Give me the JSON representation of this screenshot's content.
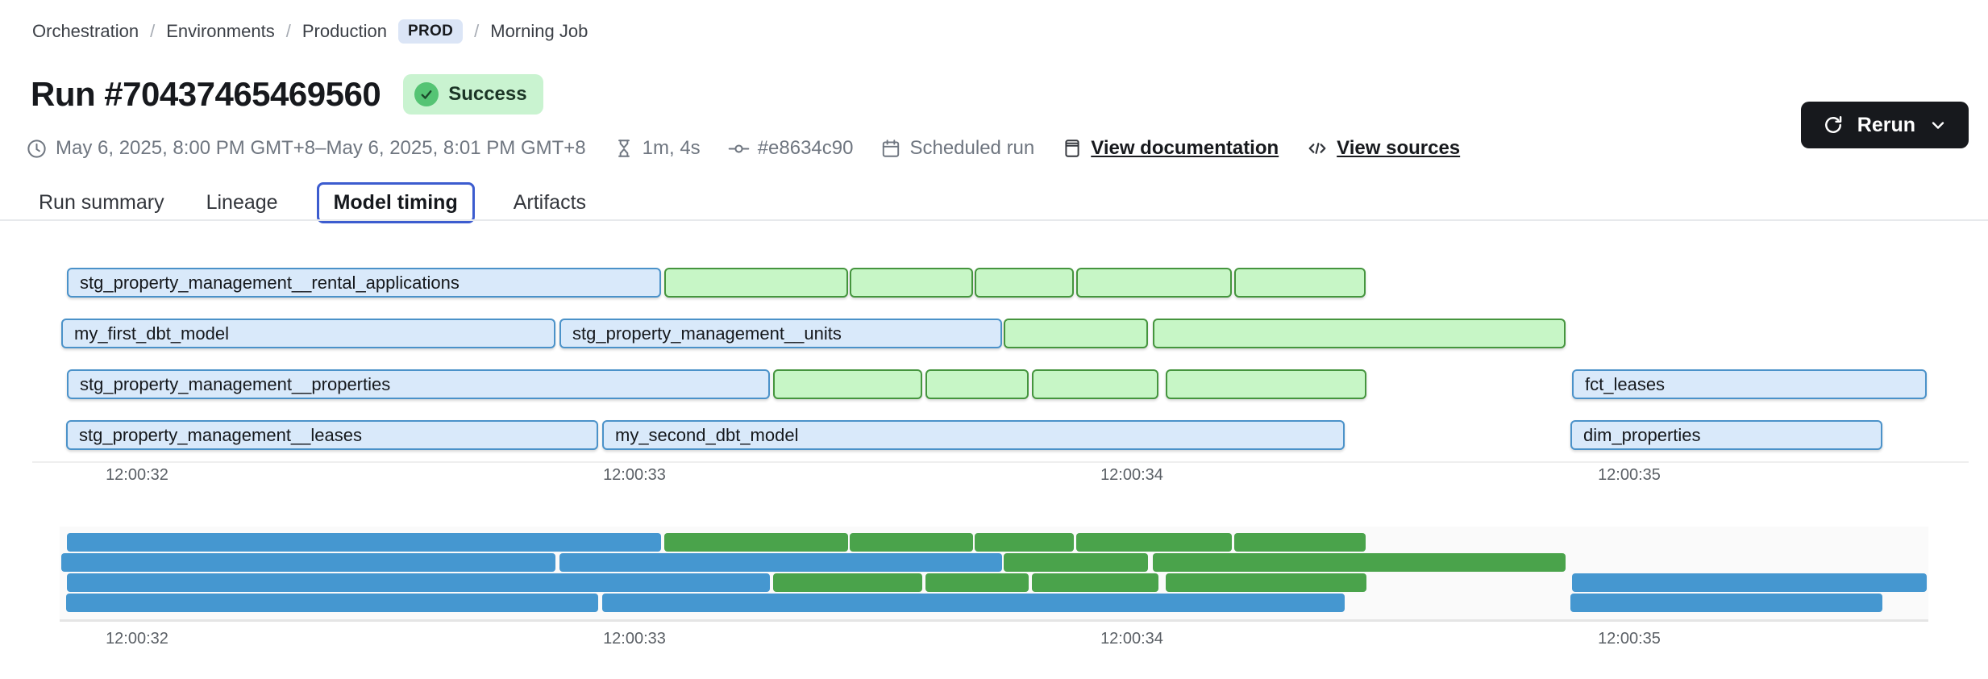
{
  "breadcrumb": {
    "separator": "/",
    "items": [
      {
        "label": "Orchestration"
      },
      {
        "label": "Environments"
      },
      {
        "label": "Production"
      },
      {
        "label": "Morning Job"
      }
    ],
    "env_badge": "PROD"
  },
  "header": {
    "title": "Run #70437465469560",
    "status": "Success"
  },
  "actions": {
    "rerun_label": "Rerun"
  },
  "meta": {
    "time_range": "May 6, 2025, 8:00 PM GMT+8–May 6, 2025, 8:01 PM GMT+8",
    "duration": "1m, 4s",
    "commit": "#e8634c90",
    "trigger": "Scheduled run",
    "docs_link": "View documentation",
    "sources_link": "View sources"
  },
  "tabs": [
    {
      "label": "Run summary"
    },
    {
      "label": "Lineage"
    },
    {
      "label": "Model timing"
    },
    {
      "label": "Artifacts"
    }
  ],
  "chart_data": {
    "type": "gantt",
    "title": "Model timing",
    "time_unit": "seconds",
    "axis_ticks": [
      {
        "t": 32,
        "label": "12:00:32"
      },
      {
        "t": 33,
        "label": "12:00:33"
      },
      {
        "t": 34,
        "label": "12:00:34"
      },
      {
        "t": 35,
        "label": "12:00:35"
      }
    ],
    "rows": [
      {
        "bars": [
          {
            "name": "stg_property_management__rental_applications",
            "type": "model",
            "start": 31.859,
            "end": 33.053
          },
          {
            "type": "test",
            "start": 33.06,
            "end": 33.43
          },
          {
            "type": "test",
            "start": 33.433,
            "end": 33.681
          },
          {
            "type": "test",
            "start": 33.684,
            "end": 33.883
          },
          {
            "type": "test",
            "start": 33.888,
            "end": 34.201
          },
          {
            "type": "test",
            "start": 34.206,
            "end": 34.47
          }
        ]
      },
      {
        "bars": [
          {
            "name": "my_first_dbt_model",
            "type": "model",
            "start": 31.848,
            "end": 32.841
          },
          {
            "name": "stg_property_management__units",
            "type": "model",
            "start": 32.849,
            "end": 33.739
          },
          {
            "type": "test",
            "start": 33.742,
            "end": 34.032
          },
          {
            "type": "test",
            "start": 34.042,
            "end": 34.872
          }
        ]
      },
      {
        "bars": [
          {
            "name": "stg_property_management__properties",
            "type": "model",
            "start": 31.859,
            "end": 33.272
          },
          {
            "type": "test",
            "start": 33.279,
            "end": 33.579
          },
          {
            "type": "test",
            "start": 33.585,
            "end": 33.793
          },
          {
            "type": "test",
            "start": 33.799,
            "end": 34.054
          },
          {
            "type": "test",
            "start": 34.068,
            "end": 34.472
          },
          {
            "name": "fct_leases",
            "type": "model",
            "start": 34.885,
            "end": 35.598
          }
        ]
      },
      {
        "bars": [
          {
            "name": "stg_property_management__leases",
            "type": "model",
            "start": 31.857,
            "end": 32.927
          },
          {
            "name": "my_second_dbt_model",
            "type": "model",
            "start": 32.935,
            "end": 34.428
          },
          {
            "name": "dim_properties",
            "type": "model",
            "start": 34.882,
            "end": 35.509
          }
        ]
      }
    ],
    "colors": {
      "model_fill": "#d9e9fa",
      "model_border": "#4b92c9",
      "test_fill": "#c7f6c6",
      "test_border": "#45953e",
      "minimap_model": "#4597d0",
      "minimap_test": "#4aa34b"
    }
  }
}
